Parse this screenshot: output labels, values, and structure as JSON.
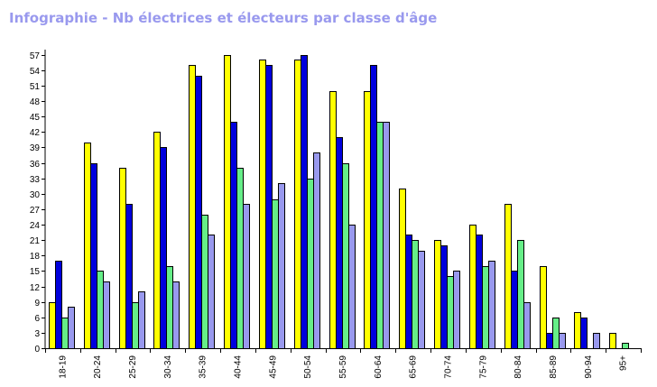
{
  "title": "Infographie - Nb électrices et électeurs par classe d'âge",
  "chart_data": {
    "type": "bar",
    "title": "Infographie - Nb électrices et électeurs par classe d'âge",
    "xlabel": "",
    "ylabel": "",
    "ylim": [
      0,
      58
    ],
    "yticks": [
      0,
      3,
      6,
      9,
      12,
      15,
      18,
      21,
      24,
      27,
      30,
      33,
      36,
      39,
      42,
      45,
      48,
      51,
      54,
      57
    ],
    "categories": [
      "18-19",
      "20-24",
      "25-29",
      "30-34",
      "35-39",
      "40-44",
      "45-49",
      "50-54",
      "55-59",
      "60-64",
      "65-69",
      "70-74",
      "75-79",
      "80-84",
      "85-89",
      "90-94",
      "95+"
    ],
    "series": [
      {
        "color": "#ffff00",
        "values": [
          9,
          40,
          35,
          42,
          55,
          57,
          56,
          56,
          50,
          50,
          31,
          21,
          24,
          28,
          16,
          7,
          3
        ]
      },
      {
        "color": "#0000dd",
        "values": [
          17,
          36,
          28,
          39,
          53,
          44,
          55,
          57,
          41,
          55,
          22,
          20,
          22,
          15,
          3,
          6,
          0
        ]
      },
      {
        "color": "#66ee88",
        "values": [
          6,
          15,
          9,
          16,
          26,
          35,
          29,
          33,
          36,
          44,
          21,
          14,
          16,
          21,
          6,
          0,
          1
        ]
      },
      {
        "color": "#9999ee",
        "values": [
          8,
          13,
          11,
          13,
          22,
          28,
          32,
          38,
          24,
          44,
          19,
          15,
          17,
          9,
          3,
          3,
          0
        ]
      }
    ],
    "grid": false,
    "legend": "none"
  }
}
